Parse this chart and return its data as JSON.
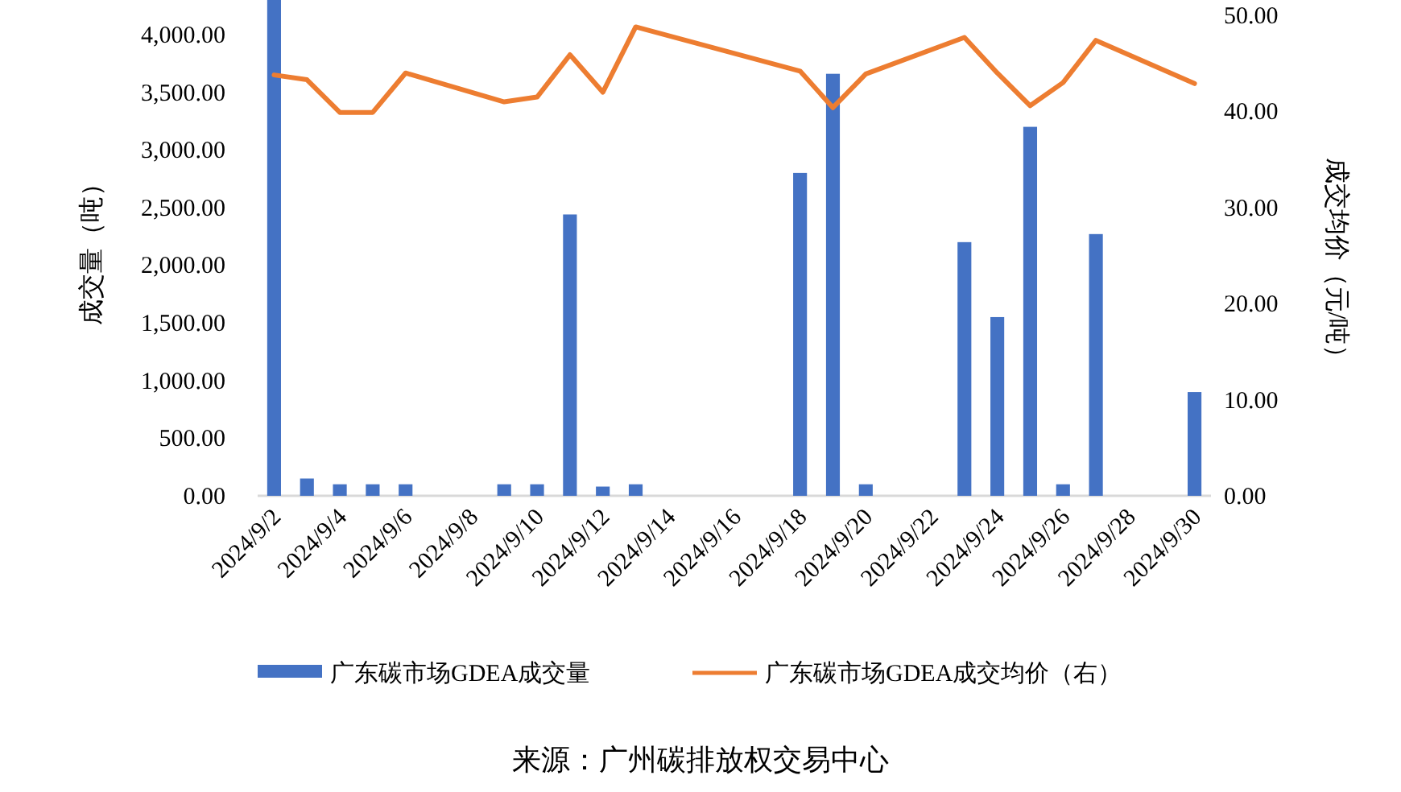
{
  "chart_data": {
    "type": "bar",
    "ylabel": "成交量（吨）",
    "y2label": "成交均价（元/吨）",
    "xlim": [
      "2024-09-01T12:00",
      "2024-09-30T12:00"
    ],
    "xticks": [
      {
        "value": "2024-09-02",
        "label": "2024/9/2"
      },
      {
        "value": "2024-09-04",
        "label": "2024/9/4"
      },
      {
        "value": "2024-09-06",
        "label": "2024/9/6"
      },
      {
        "value": "2024-09-08",
        "label": "2024/9/8"
      },
      {
        "value": "2024-09-10",
        "label": "2024/9/10"
      },
      {
        "value": "2024-09-12",
        "label": "2024/9/12"
      },
      {
        "value": "2024-09-14",
        "label": "2024/9/14"
      },
      {
        "value": "2024-09-16",
        "label": "2024/9/16"
      },
      {
        "value": "2024-09-18",
        "label": "2024/9/18"
      },
      {
        "value": "2024-09-20",
        "label": "2024/9/20"
      },
      {
        "value": "2024-09-22",
        "label": "2024/9/22"
      },
      {
        "value": "2024-09-24",
        "label": "2024/9/24"
      },
      {
        "value": "2024-09-26",
        "label": "2024/9/26"
      },
      {
        "value": "2024-09-28",
        "label": "2024/9/28"
      },
      {
        "value": "2024-09-30",
        "label": "2024/9/30"
      }
    ],
    "ylim": [
      0,
      4300
    ],
    "yticks": [
      {
        "value": 0,
        "label": "0.00"
      },
      {
        "value": 500,
        "label": "500.00"
      },
      {
        "value": 1000,
        "label": "1,000.00"
      },
      {
        "value": 1500,
        "label": "1,500.00"
      },
      {
        "value": 2000,
        "label": "2,000.00"
      },
      {
        "value": 2500,
        "label": "2,500.00"
      },
      {
        "value": 3000,
        "label": "3,000.00"
      },
      {
        "value": 3500,
        "label": "3,500.00"
      },
      {
        "value": 4000,
        "label": "4,000.00"
      }
    ],
    "y2lim": [
      0,
      51.6
    ],
    "y2ticks": [
      {
        "value": 0,
        "label": "0.00"
      },
      {
        "value": 10,
        "label": "10.00"
      },
      {
        "value": 20,
        "label": "20.00"
      },
      {
        "value": 30,
        "label": "30.00"
      },
      {
        "value": 40,
        "label": "40.00"
      },
      {
        "value": 50,
        "label": "50.00"
      }
    ],
    "grid": false,
    "legend": "bottom",
    "series": [
      {
        "name": "广东碳市场GDEA成交量",
        "color": "#4472c4",
        "x": [
          "2024-09-02",
          "2024-09-03",
          "2024-09-04",
          "2024-09-05",
          "2024-09-06",
          "2024-09-09",
          "2024-09-10",
          "2024-09-11",
          "2024-09-12",
          "2024-09-13",
          "2024-09-18",
          "2024-09-19",
          "2024-09-20",
          "2024-09-23",
          "2024-09-24",
          "2024-09-25",
          "2024-09-26",
          "2024-09-27",
          "2024-09-30"
        ],
        "values": [
          4300,
          150,
          100,
          100,
          100,
          100,
          100,
          2440,
          80,
          100,
          2800,
          3660,
          100,
          2200,
          1550,
          3200,
          100,
          2270,
          900
        ]
      },
      {
        "name": "广东碳市场GDEA成交均价（右）",
        "type": "line",
        "axis": "y2",
        "color": "#ed7d31",
        "x": [
          "2024-09-02",
          "2024-09-03",
          "2024-09-04",
          "2024-09-05",
          "2024-09-06",
          "2024-09-09",
          "2024-09-10",
          "2024-09-11",
          "2024-09-12",
          "2024-09-13",
          "2024-09-18",
          "2024-09-19",
          "2024-09-20",
          "2024-09-23",
          "2024-09-24",
          "2024-09-25",
          "2024-09-26",
          "2024-09-27",
          "2024-09-30"
        ],
        "values": [
          43.8,
          43.3,
          39.9,
          39.9,
          44.0,
          41.0,
          41.5,
          45.9,
          42.0,
          48.8,
          44.2,
          40.4,
          43.9,
          47.7,
          44.0,
          40.6,
          43.0,
          47.4,
          42.9
        ]
      }
    ],
    "annotations": [
      "来源：广州碳排放权交易中心"
    ]
  }
}
